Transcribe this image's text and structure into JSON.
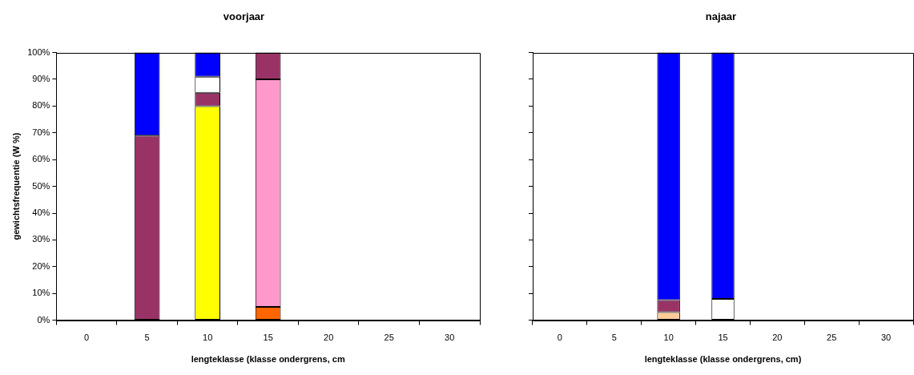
{
  "chart_data": [
    {
      "type": "bar",
      "title": "voorjaar",
      "xlabel": "lengteklasse (klasse ondergrens, cm",
      "ylabel": "gewichtsfrequentie (W %)",
      "categories": [
        "0",
        "5",
        "10",
        "15",
        "20",
        "25",
        "30"
      ],
      "stacked": true,
      "grid": false,
      "legend": false,
      "ylim": [
        0,
        100
      ],
      "yticks": [
        {
          "value": 0,
          "label": "0%"
        },
        {
          "value": 10,
          "label": "10%"
        },
        {
          "value": 20,
          "label": "20%"
        },
        {
          "value": 30,
          "label": "30%"
        },
        {
          "value": 40,
          "label": "40%"
        },
        {
          "value": 50,
          "label": "50%"
        },
        {
          "value": 60,
          "label": "60%"
        },
        {
          "value": 70,
          "label": "70%"
        },
        {
          "value": 80,
          "label": "80%"
        },
        {
          "value": 90,
          "label": "90%"
        },
        {
          "value": 100,
          "label": "100%"
        }
      ],
      "series": [
        {
          "color": "#ff6600",
          "values": [
            null,
            null,
            null,
            5,
            null,
            null,
            null
          ]
        },
        {
          "color": "#ff99cc",
          "values": [
            null,
            null,
            null,
            85,
            null,
            null,
            null
          ]
        },
        {
          "color": "#ffff00",
          "values": [
            null,
            null,
            80,
            null,
            null,
            null,
            null
          ]
        },
        {
          "color": "#993366",
          "values": [
            null,
            69,
            5,
            10,
            null,
            null,
            null
          ]
        },
        {
          "color": "#ffffff",
          "values": [
            null,
            null,
            6,
            null,
            null,
            null,
            null
          ]
        },
        {
          "color": "#0000ff",
          "values": [
            null,
            31,
            9,
            null,
            null,
            null,
            null
          ]
        }
      ]
    },
    {
      "type": "bar",
      "title": "najaar",
      "xlabel": "lengteklasse (klasse ondergrens, cm)",
      "categories": [
        "0",
        "5",
        "10",
        "15",
        "20",
        "25",
        "30"
      ],
      "stacked": true,
      "grid": false,
      "legend": false,
      "tick_labels": "x",
      "ylim": [
        0,
        100
      ],
      "yticks": [
        {
          "value": 0,
          "label": null
        },
        {
          "value": 10,
          "label": null
        },
        {
          "value": 20,
          "label": null
        },
        {
          "value": 30,
          "label": null
        },
        {
          "value": 40,
          "label": null
        },
        {
          "value": 50,
          "label": null
        },
        {
          "value": 60,
          "label": null
        },
        {
          "value": 70,
          "label": null
        },
        {
          "value": 80,
          "label": null
        },
        {
          "value": 90,
          "label": null
        },
        {
          "value": 100,
          "label": null
        }
      ],
      "series": [
        {
          "color": "#ffcc99",
          "values": [
            null,
            null,
            3,
            null,
            null,
            null,
            null
          ]
        },
        {
          "color": "#993366",
          "values": [
            null,
            null,
            4.5,
            null,
            null,
            null,
            null
          ]
        },
        {
          "color": "#ffffff",
          "values": [
            null,
            null,
            null,
            8,
            null,
            null,
            null
          ]
        },
        {
          "color": "#0000ff",
          "values": [
            null,
            null,
            92.5,
            92,
            null,
            null,
            null
          ]
        }
      ]
    }
  ]
}
